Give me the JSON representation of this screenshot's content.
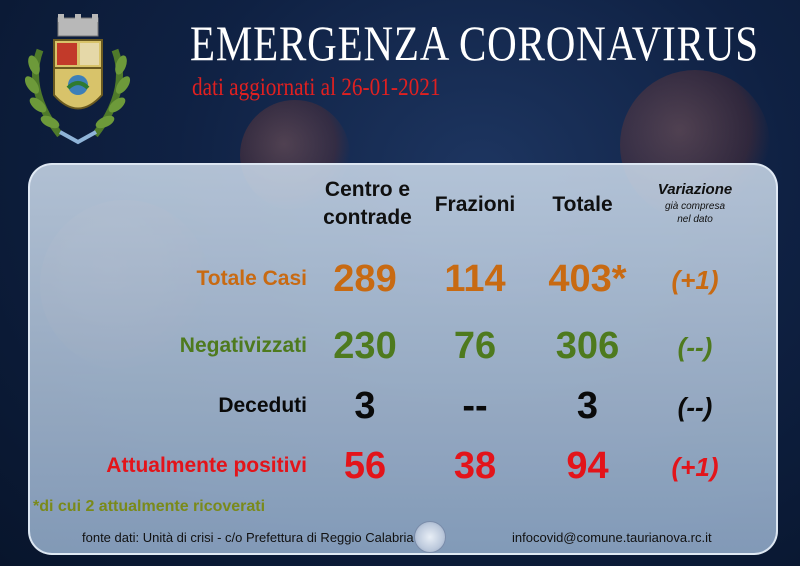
{
  "header": {
    "title": "EMERGENZA CORONAVIRUS",
    "subtitle": "dati aggiornati al 26-01-2021"
  },
  "table": {
    "columns": {
      "centro": "Centro e contrade",
      "frazioni": "Frazioni",
      "totale": "Totale",
      "variazione": "Variazione",
      "variazione_note": "già compresa nel dato"
    },
    "rows": [
      {
        "label": "Totale Casi",
        "centro": "289",
        "frazioni": "114",
        "totale": "403*",
        "variazione": "(+1)",
        "color": "#c86a12"
      },
      {
        "label": "Negativizzati",
        "centro": "230",
        "frazioni": "76",
        "totale": "306",
        "variazione": "(--)",
        "color": "#4e7a1e"
      },
      {
        "label": "Deceduti",
        "centro": "3",
        "frazioni": "--",
        "totale": "3",
        "variazione": "(--)",
        "color": "#0a0a0a"
      },
      {
        "label": "Attualmente positivi",
        "centro": "56",
        "frazioni": "38",
        "totale": "94",
        "variazione": "(+1)",
        "color": "#e3141a"
      }
    ]
  },
  "note": "*di cui 2 attualmente ricoverati",
  "footer": {
    "source": "fonte dati: Unità di crisi - c/o Prefettura di Reggio Calabria",
    "email": "infocovid@comune.taurianova.rc.it"
  },
  "icons": [
    "coat-of-arms-icon",
    "prefettura-seal-icon"
  ]
}
